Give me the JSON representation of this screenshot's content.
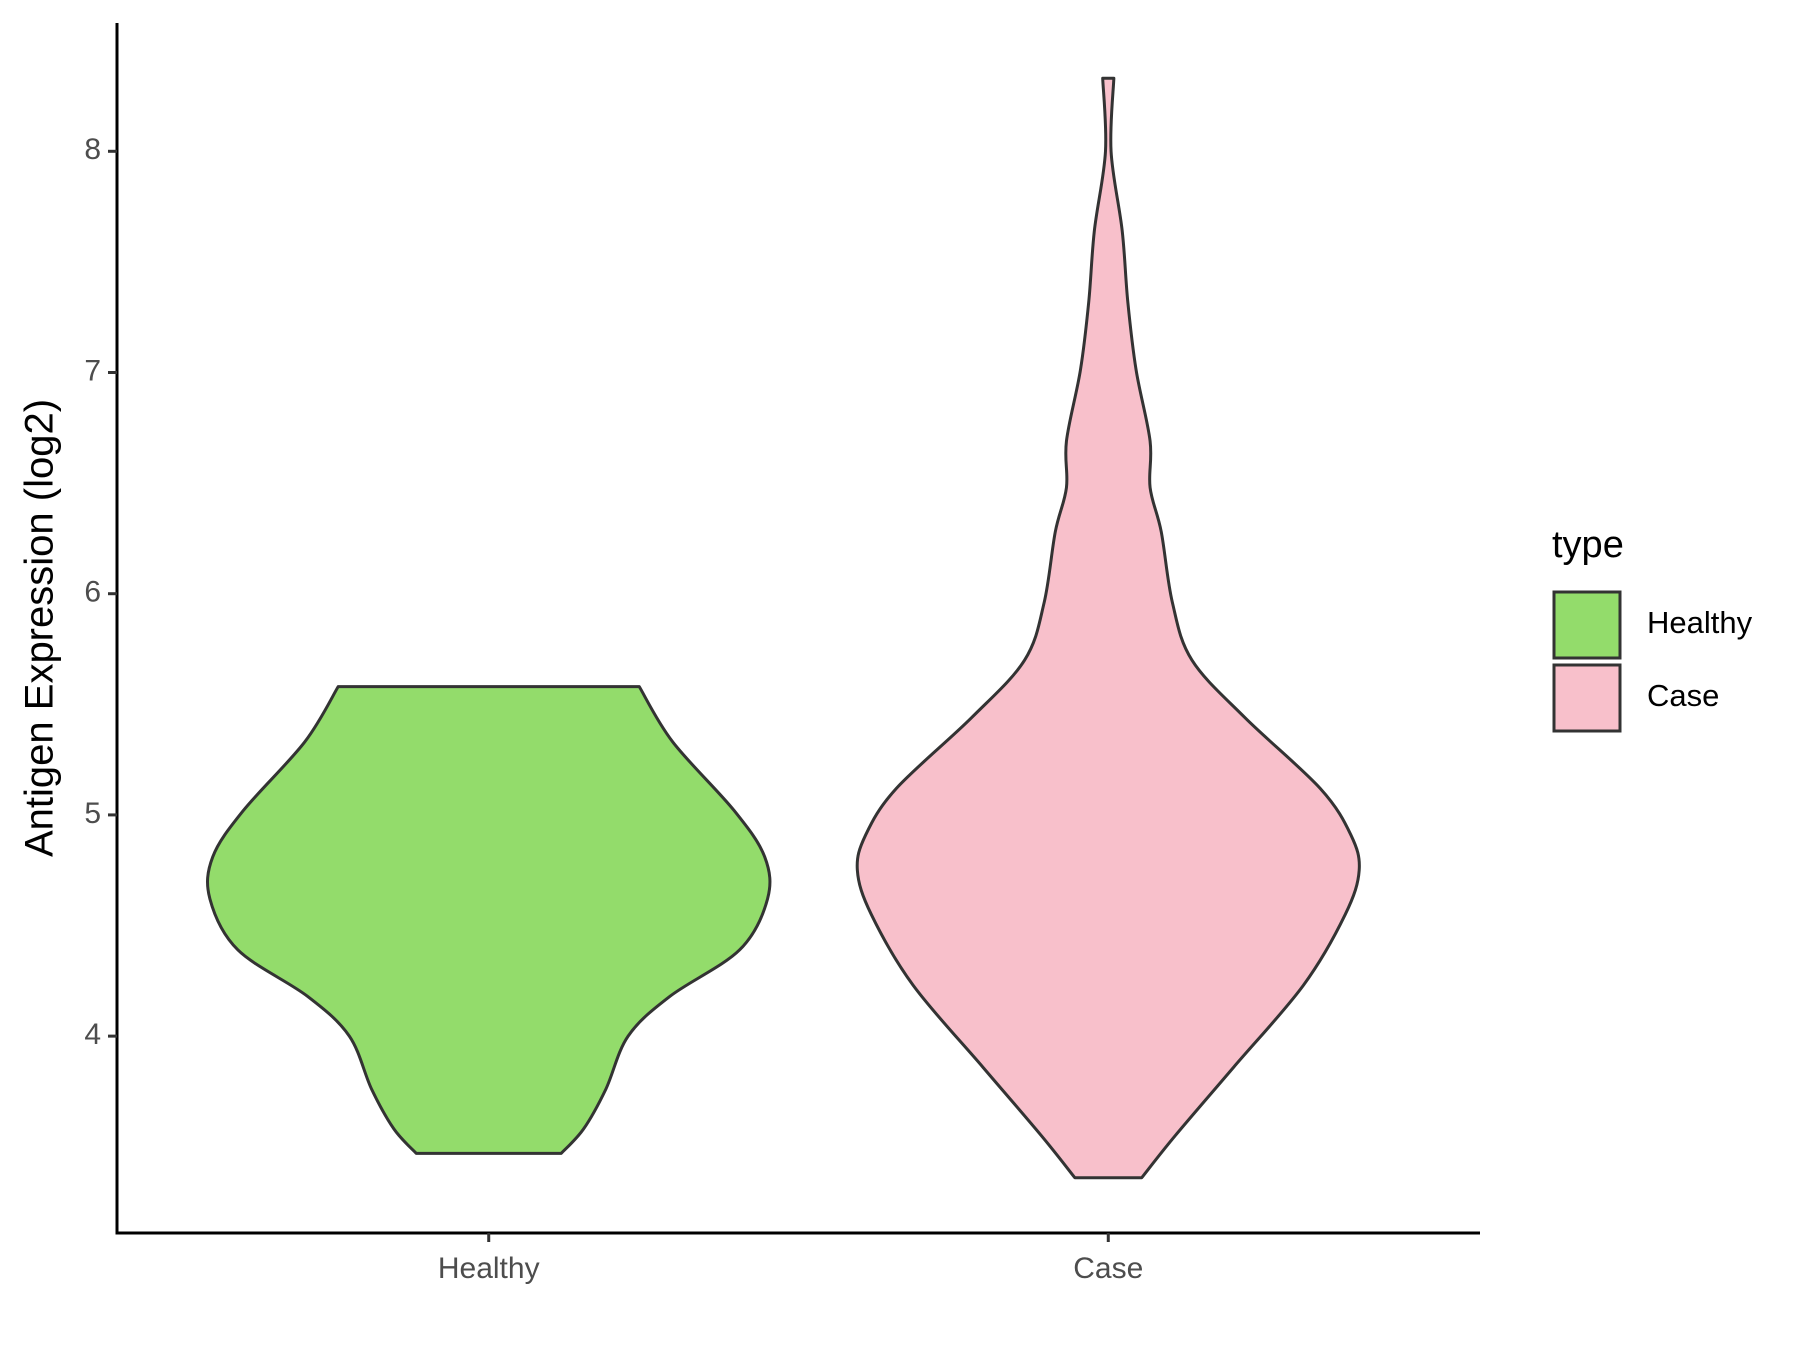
{
  "chart_data": {
    "type": "violin",
    "y_label": "Antigen Expression (log2)",
    "categories": [
      "Healthy",
      "Case"
    ],
    "legend_title": "type",
    "legend_position": "right",
    "series": [
      {
        "name": "Healthy",
        "color": "#93dc6b",
        "y": [
          5.58,
          5.33,
          5.02,
          4.81,
          4.62,
          4.39,
          4.18,
          4.0,
          3.76,
          3.58,
          3.47
        ],
        "density": [
          0.54,
          0.66,
          0.88,
          0.99,
          1.0,
          0.9,
          0.65,
          0.5,
          0.42,
          0.34,
          0.26
        ]
      },
      {
        "name": "Case",
        "color": "#f8c0cb",
        "y": [
          8.33,
          8.0,
          7.64,
          7.32,
          7.01,
          6.69,
          6.48,
          6.28,
          5.96,
          5.7,
          5.44,
          5.12,
          4.91,
          4.75,
          4.55,
          4.23,
          3.86,
          3.55,
          3.36
        ],
        "density": [
          0.02,
          0.01,
          0.05,
          0.07,
          0.1,
          0.15,
          0.15,
          0.19,
          0.23,
          0.3,
          0.49,
          0.76,
          0.87,
          0.9,
          0.85,
          0.7,
          0.45,
          0.24,
          0.12
        ]
      }
    ],
    "ylim": [
      3.11,
      8.58
    ],
    "yticks": [
      4,
      5,
      6,
      7,
      8
    ],
    "grid": false
  }
}
